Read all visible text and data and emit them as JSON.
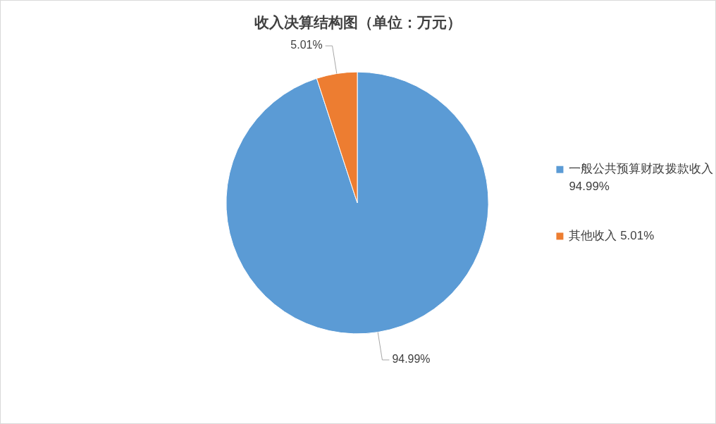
{
  "chart_data": {
    "type": "pie",
    "title": "收入决算结构图（单位：万元）",
    "categories": [
      "一般公共预算财政拨款收入",
      "其他收入"
    ],
    "values": [
      94.99,
      5.01
    ],
    "value_labels": [
      "94.99%",
      "5.01%"
    ],
    "colors": [
      "#5b9bd5",
      "#ed7d31"
    ],
    "legend": "right"
  }
}
